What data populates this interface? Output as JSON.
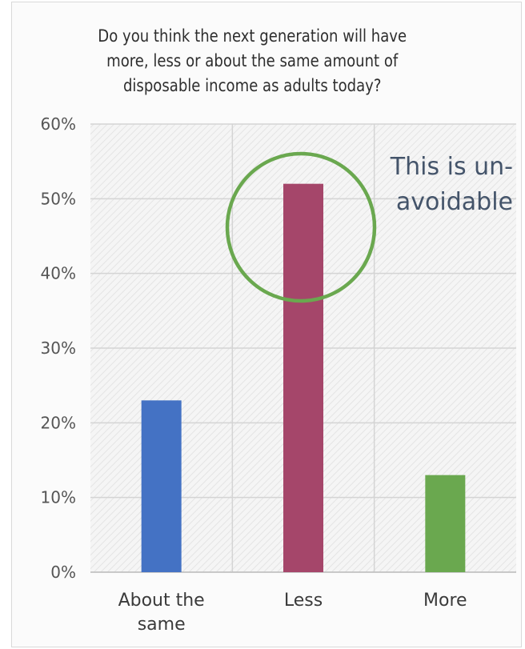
{
  "chart_data": {
    "type": "bar",
    "title_lines": [
      "Do you think the next generation will have",
      "more, less or about the same amount of",
      "disposable income as adults today?"
    ],
    "categories": [
      {
        "lines": [
          "About the",
          "same"
        ]
      },
      {
        "lines": [
          "Less"
        ]
      },
      {
        "lines": [
          "More"
        ]
      }
    ],
    "values": [
      23,
      52,
      13
    ],
    "y_ticks": [
      "0%",
      "10%",
      "20%",
      "30%",
      "40%",
      "50%",
      "60%"
    ],
    "ylim": [
      0,
      60
    ],
    "grid": true,
    "colors": [
      "#4472c4",
      "#a5466a",
      "#6aa84f"
    ],
    "annotation": {
      "lines": [
        "This is un-",
        "avoidable"
      ],
      "highlight_category": "Less",
      "highlight_color": "#6aa84f",
      "text_color": "#44546a"
    }
  }
}
